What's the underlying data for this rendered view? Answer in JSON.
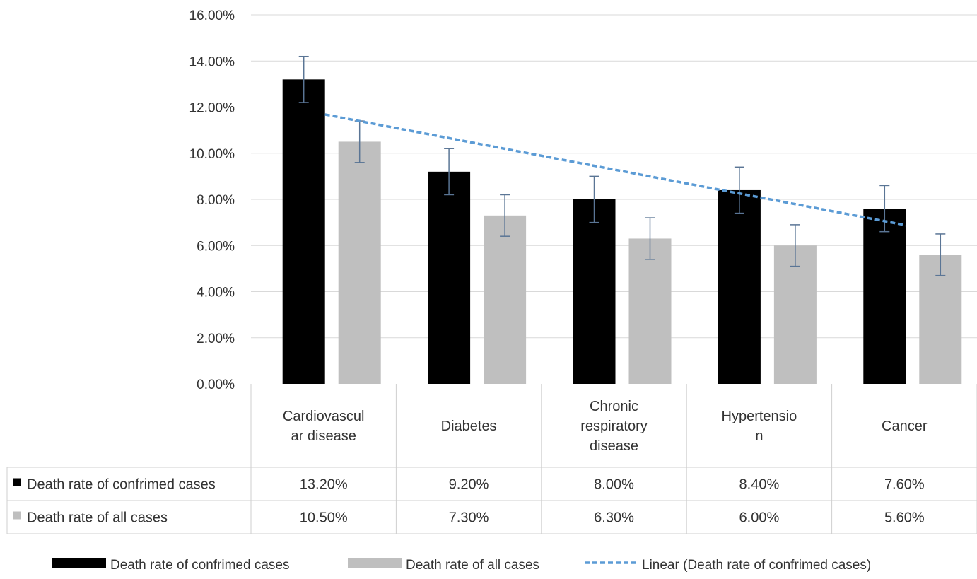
{
  "chart_data": {
    "type": "bar",
    "categories": [
      [
        "Cardiovascul",
        "ar disease"
      ],
      [
        "Diabetes"
      ],
      [
        "Chronic",
        "respiratory",
        "disease"
      ],
      [
        "Hypertensio",
        "n"
      ],
      [
        "Cancer"
      ]
    ],
    "series": [
      {
        "name": "Death rate of confrimed cases",
        "color": "#000000",
        "values": [
          13.2,
          9.2,
          8.0,
          8.4,
          7.6
        ],
        "value_labels": [
          "13.20%",
          "9.20%",
          "8.00%",
          "8.40%",
          "7.60%"
        ],
        "error": 1.0
      },
      {
        "name": "Death rate of all cases",
        "color": "#bfbfbf",
        "values": [
          10.5,
          7.3,
          6.3,
          6.0,
          5.6
        ],
        "value_labels": [
          "10.50%",
          "7.30%",
          "6.30%",
          "6.00%",
          "5.60%"
        ],
        "error": 0.9
      }
    ],
    "trendline": {
      "name": "Linear (Death rate of confrimed cases)",
      "series_index": 0,
      "type": "linear",
      "color": "#5b9bd5",
      "dashed": true
    },
    "y_ticks": [
      "0.00%",
      "2.00%",
      "4.00%",
      "6.00%",
      "8.00%",
      "10.00%",
      "12.00%",
      "14.00%",
      "16.00%"
    ],
    "ylim": [
      0,
      16
    ],
    "grid": true,
    "error_bar_color": "#5a7595",
    "data_table": true,
    "legend_position": "bottom",
    "title": "",
    "xlabel": "",
    "ylabel": ""
  }
}
